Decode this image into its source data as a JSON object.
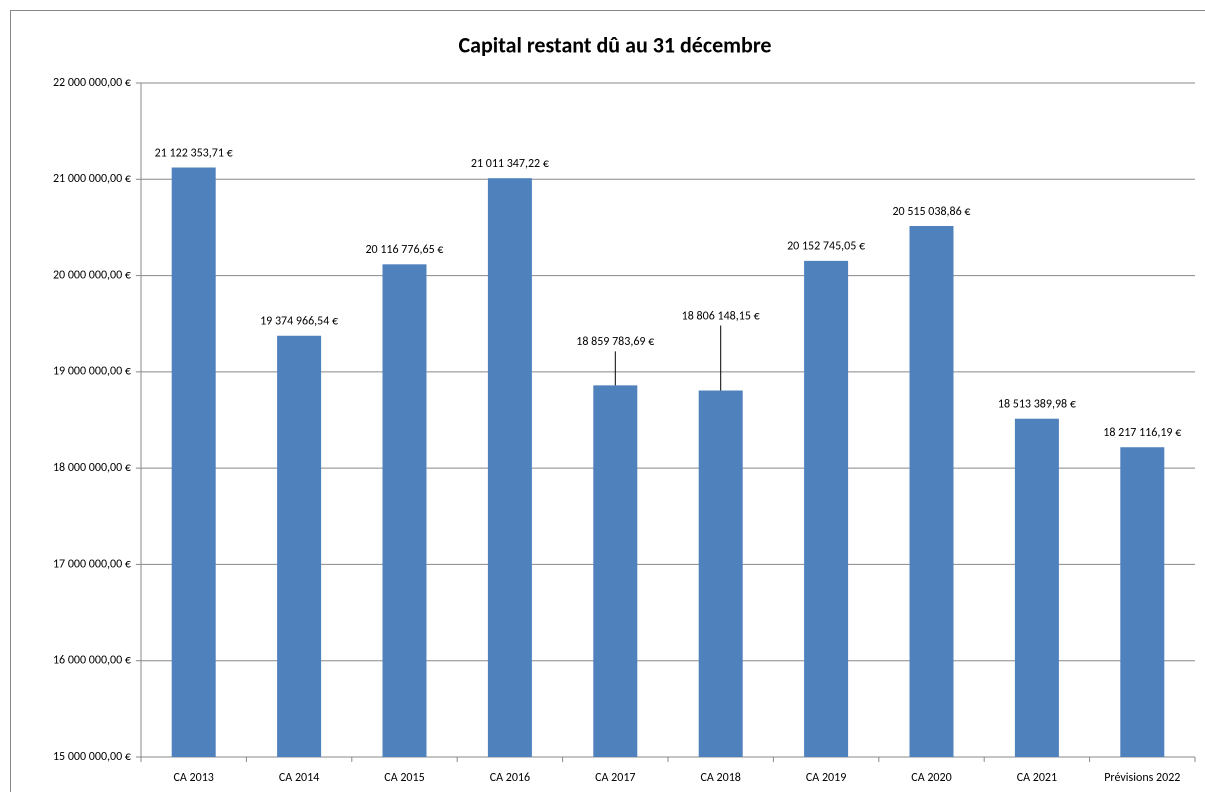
{
  "chart_data": {
    "type": "bar",
    "title": "Capital restant dû au 31 décembre",
    "categories": [
      "CA 2013",
      "CA 2014",
      "CA 2015",
      "CA 2016",
      "CA 2017",
      "CA 2018",
      "CA 2019",
      "CA 2020",
      "CA 2021",
      "Prévisions 2022"
    ],
    "values": [
      21122353.71,
      19374966.54,
      20116776.65,
      21011347.22,
      18859783.69,
      18806148.15,
      20152745.05,
      20515038.86,
      18513389.98,
      18217116.19
    ],
    "value_labels": [
      "21 122 353,71 €",
      "19 374 966,54 €",
      "20 116 776,65 €",
      "21 011 347,22 €",
      "18 859 783,69 €",
      "18 806 148,15 €",
      "20 152 745,05 €",
      "20 515 038,86 €",
      "18 513 389,98 €",
      "18 217 116,19 €"
    ],
    "color": "#4f81bd",
    "ylim": [
      15000000,
      22000000
    ],
    "yticks": [
      {
        "value": 15000000,
        "label": "15 000 000,00 €"
      },
      {
        "value": 16000000,
        "label": "16 000 000,00 €"
      },
      {
        "value": 17000000,
        "label": "17 000 000,00 €"
      },
      {
        "value": 18000000,
        "label": "18 000 000,00 €"
      },
      {
        "value": 19000000,
        "label": "19 000 000,00 €"
      },
      {
        "value": 20000000,
        "label": "20 000 000,00 €"
      },
      {
        "value": 21000000,
        "label": "21 000 000,00 €"
      },
      {
        "value": 22000000,
        "label": "22 000 000,00 €"
      }
    ],
    "grid": true
  }
}
